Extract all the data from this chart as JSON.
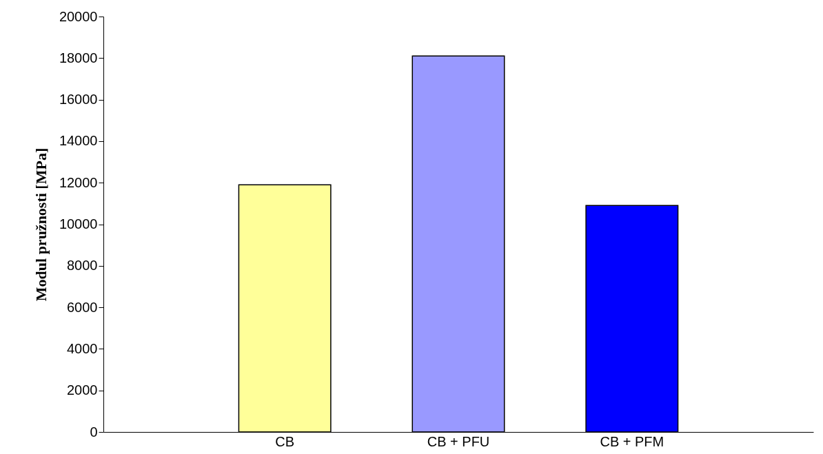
{
  "chart_data": {
    "type": "bar",
    "ylabel": "Modul pružnosti [MPa]",
    "categories": [
      "CB",
      "CB + PFU",
      "CB + PFM"
    ],
    "values": [
      11900,
      18100,
      10900
    ],
    "colors": [
      "#ffff99",
      "#9999ff",
      "#0000ff"
    ],
    "ylim": [
      0,
      20000
    ],
    "yticks": [
      0,
      2000,
      4000,
      6000,
      8000,
      10000,
      12000,
      14000,
      16000,
      18000,
      20000
    ],
    "grid": false,
    "legend": false
  }
}
